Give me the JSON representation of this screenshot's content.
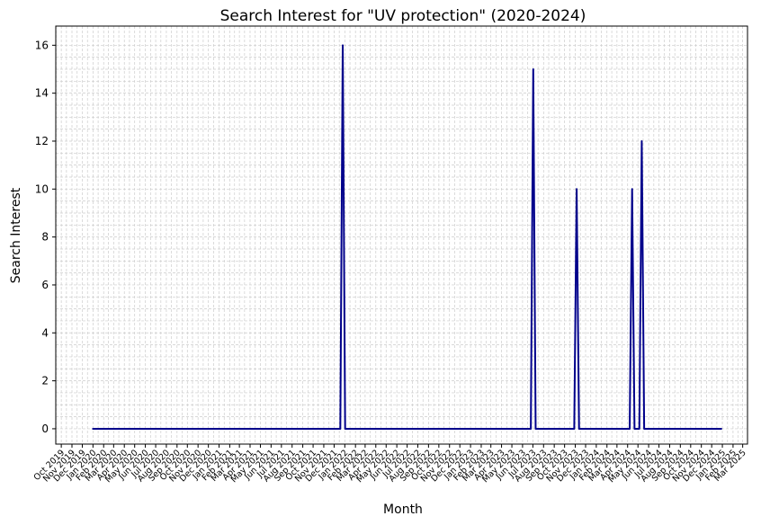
{
  "chart_data": {
    "type": "line",
    "title": "Search Interest for \"UV protection\" (2020-2024)",
    "xlabel": "Month",
    "ylabel": "Search Interest",
    "x_axis_kind": "date",
    "xlim": [
      "2019-09-15",
      "2025-03-15"
    ],
    "ylim": [
      -0.64,
      16.8
    ],
    "y_ticks": [
      0,
      2,
      4,
      6,
      8,
      10,
      12,
      14,
      16
    ],
    "x_tick_labels": [
      "Oct 2019",
      "Nov 2019",
      "Dec 2019",
      "Jan 2020",
      "Feb 2020",
      "Mar 2020",
      "Apr 2020",
      "May 2020",
      "Jun 2020",
      "Jul 2020",
      "Aug 2020",
      "Sep 2020",
      "Oct 2020",
      "Nov 2020",
      "Dec 2020",
      "Jan 2021",
      "Feb 2021",
      "Mar 2021",
      "Apr 2021",
      "May 2021",
      "Jun 2021",
      "Jul 2021",
      "Aug 2021",
      "Sep 2021",
      "Oct 2021",
      "Nov 2021",
      "Dec 2021",
      "Jan 2022",
      "Feb 2022",
      "Mar 2022",
      "Apr 2022",
      "May 2022",
      "Jun 2022",
      "Jul 2022",
      "Aug 2022",
      "Sep 2022",
      "Oct 2022",
      "Nov 2022",
      "Dec 2022",
      "Jan 2023",
      "Feb 2023",
      "Mar 2023",
      "Apr 2023",
      "May 2023",
      "Jun 2023",
      "Jul 2023",
      "Aug 2023",
      "Sep 2023",
      "Oct 2023",
      "Nov 2023",
      "Dec 2023",
      "Jan 2024",
      "Feb 2024",
      "Mar 2024",
      "Apr 2024",
      "May 2024",
      "Jun 2024",
      "Jul 2024",
      "Aug 2024",
      "Sep 2024",
      "Oct 2024",
      "Nov 2024",
      "Dec 2024",
      "Jan 2025",
      "Feb 2025",
      "Mar 2025"
    ],
    "grid": true,
    "line_color": "#00008b",
    "series": [
      {
        "x": [
          "2020-01-01",
          "2021-12-19",
          "2021-12-26",
          "2022-01-02",
          "2023-06-25",
          "2023-07-02",
          "2023-07-09",
          "2023-10-29",
          "2023-11-05",
          "2023-11-12",
          "2024-04-07",
          "2024-04-14",
          "2024-04-21",
          "2024-05-05",
          "2024-05-12",
          "2024-05-19",
          "2024-12-29"
        ],
        "y": [
          0,
          0,
          16,
          0,
          0,
          15,
          0,
          0,
          10,
          0,
          0,
          10,
          0,
          0,
          12,
          0,
          0
        ]
      }
    ]
  }
}
